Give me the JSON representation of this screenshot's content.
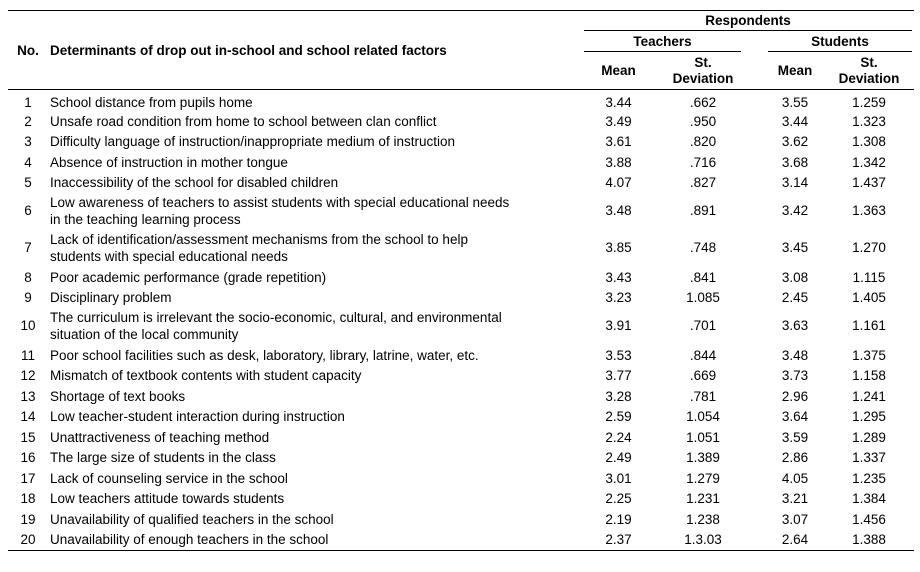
{
  "header": {
    "no_label": "No.",
    "factor_label": "Determinants of drop out in-school and school related factors",
    "respondents_label": "Respondents",
    "teachers_label": "Teachers",
    "students_label": "Students",
    "mean_label": "Mean",
    "sd_line1": "St.",
    "sd_line2": "Deviation"
  },
  "rows": [
    {
      "no": "1",
      "factor": [
        "School distance from pupils home"
      ],
      "t_mean": "3.44",
      "t_sd": ".662",
      "s_mean": "3.55",
      "s_sd": "1.259"
    },
    {
      "no": "2",
      "factor": [
        "Unsafe road condition from home to school between clan conflict"
      ],
      "t_mean": "3.49",
      "t_sd": ".950",
      "s_mean": "3.44",
      "s_sd": "1.323"
    },
    {
      "no": "3",
      "factor": [
        "Difficulty language of instruction/inappropriate medium of instruction"
      ],
      "t_mean": "3.61",
      "t_sd": ".820",
      "s_mean": "3.62",
      "s_sd": "1.308"
    },
    {
      "no": "4",
      "factor": [
        "Absence of instruction in mother tongue"
      ],
      "t_mean": "3.88",
      "t_sd": ".716",
      "s_mean": "3.68",
      "s_sd": "1.342"
    },
    {
      "no": "5",
      "factor": [
        "Inaccessibility of the school for disabled children"
      ],
      "t_mean": "4.07",
      "t_sd": ".827",
      "s_mean": "3.14",
      "s_sd": "1.437"
    },
    {
      "no": "6",
      "factor": [
        "Low awareness of teachers to assist students with special educational needs",
        "in the teaching learning process"
      ],
      "t_mean": "3.48",
      "t_sd": ".891",
      "s_mean": "3.42",
      "s_sd": "1.363"
    },
    {
      "no": "7",
      "factor": [
        "Lack of identification/assessment mechanisms from the school to help",
        "students with special educational needs"
      ],
      "t_mean": "3.85",
      "t_sd": ".748",
      "s_mean": "3.45",
      "s_sd": "1.270"
    },
    {
      "no": "8",
      "factor": [
        "Poor academic performance (grade repetition)"
      ],
      "t_mean": "3.43",
      "t_sd": ".841",
      "s_mean": "3.08",
      "s_sd": "1.115"
    },
    {
      "no": "9",
      "factor": [
        "Disciplinary problem"
      ],
      "t_mean": "3.23",
      "t_sd": "1.085",
      "s_mean": "2.45",
      "s_sd": "1.405"
    },
    {
      "no": "10",
      "factor": [
        "The curriculum is irrelevant the socio-economic, cultural, and environmental",
        "situation  of the local community"
      ],
      "t_mean": "3.91",
      "t_sd": ".701",
      "s_mean": "3.63",
      "s_sd": "1.161"
    },
    {
      "no": "11",
      "factor": [
        "Poor school facilities such as desk, laboratory, library, latrine, water, etc."
      ],
      "t_mean": "3.53",
      "t_sd": ".844",
      "s_mean": "3.48",
      "s_sd": "1.375"
    },
    {
      "no": "12",
      "factor": [
        "Mismatch of textbook contents with student capacity"
      ],
      "t_mean": "3.77",
      "t_sd": ".669",
      "s_mean": "3.73",
      "s_sd": "1.158"
    },
    {
      "no": "13",
      "factor": [
        "Shortage of text books"
      ],
      "t_mean": "3.28",
      "t_sd": ".781",
      "s_mean": "2.96",
      "s_sd": "1.241"
    },
    {
      "no": "14",
      "factor": [
        "Low teacher-student interaction during instruction"
      ],
      "t_mean": "2.59",
      "t_sd": "1.054",
      "s_mean": "3.64",
      "s_sd": "1.295"
    },
    {
      "no": "15",
      "factor": [
        "Unattractiveness of teaching method"
      ],
      "t_mean": "2.24",
      "t_sd": "1.051",
      "s_mean": "3.59",
      "s_sd": "1.289"
    },
    {
      "no": "16",
      "factor": [
        "The large size of students in the class"
      ],
      "t_mean": "2.49",
      "t_sd": "1.389",
      "s_mean": "2.86",
      "s_sd": "1.337"
    },
    {
      "no": "17",
      "factor": [
        "Lack of counseling service in the school"
      ],
      "t_mean": "3.01",
      "t_sd": "1.279",
      "s_mean": "4.05",
      "s_sd": "1.235"
    },
    {
      "no": "18",
      "factor": [
        "Low teachers attitude towards students"
      ],
      "t_mean": "2.25",
      "t_sd": "1.231",
      "s_mean": "3.21",
      "s_sd": "1.384"
    },
    {
      "no": "19",
      "factor": [
        "Unavailability of qualified teachers in the school"
      ],
      "t_mean": "2.19",
      "t_sd": "1.238",
      "s_mean": "3.07",
      "s_sd": "1.456"
    },
    {
      "no": "20",
      "factor": [
        "Unavailability of enough teachers in the school"
      ],
      "t_mean": "2.37",
      "t_sd": "1.3.03",
      "s_mean": "2.64",
      "s_sd": "1.388"
    }
  ]
}
